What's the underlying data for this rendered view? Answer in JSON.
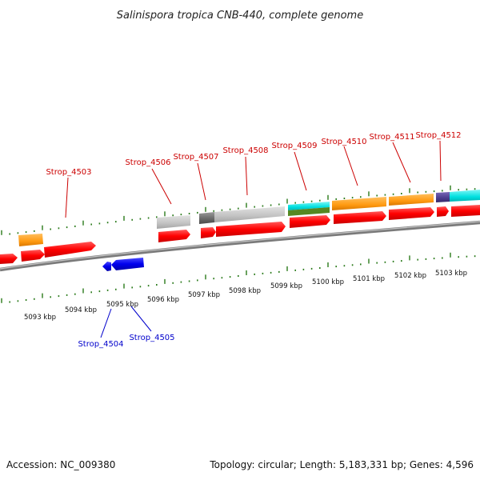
{
  "title": "Salinispora tropica CNB-440, complete genome",
  "footer": {
    "accession": "Accession: NC_009380",
    "topology": "Topology: circular; Length: 5,183,331 bp; Genes: 4,596"
  },
  "kbp_labels": [
    "5093 kbp",
    "5094 kbp",
    "5095 kbp",
    "5096 kbp",
    "5097 kbp",
    "5098 kbp",
    "5099 kbp",
    "5100 kbp",
    "5101 kbp",
    "5102 kbp",
    "5103 kbp"
  ],
  "genes_top": [
    "Strop_4503",
    "Strop_4506",
    "Strop_4507",
    "Strop_4508",
    "Strop_4509",
    "Strop_4510",
    "Strop_4511",
    "Strop_4512"
  ],
  "genes_bottom": [
    "Strop_4504",
    "Strop_4505"
  ],
  "colors": {
    "gene_forward": "#ff0000",
    "gene_reverse": "#0000ee",
    "orange": "#ff9900",
    "cyan": "#00dddd",
    "olive": "#558822",
    "grey": "#bbbbbb",
    "dark_grey": "#666666",
    "purple": "#4b3c8c",
    "tick": "#2a7a1a",
    "label_top": "#cc0000",
    "label_bottom": "#0000cc"
  }
}
